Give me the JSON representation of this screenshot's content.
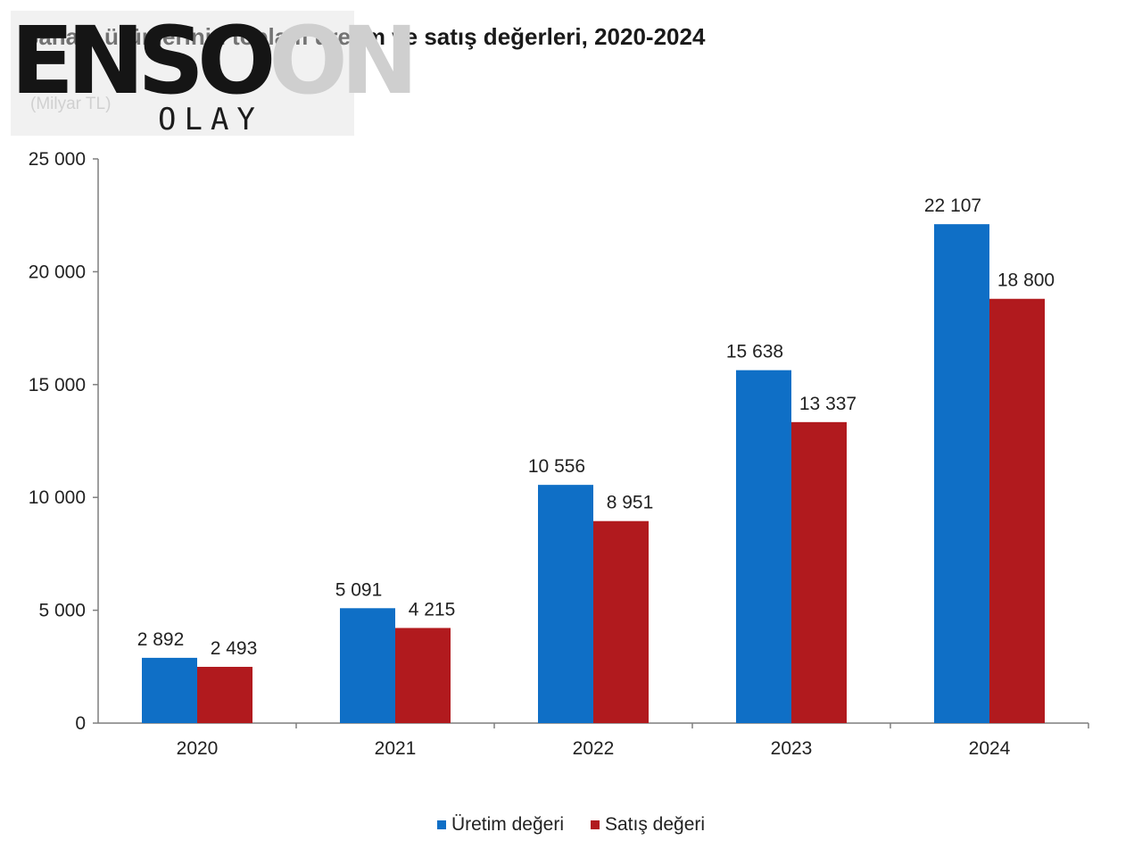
{
  "watermark": {
    "brand": "ENSON",
    "brand_dark": "ENSO",
    "brand_light": "ON",
    "sub": "OLAY"
  },
  "colors": {
    "uretim": "#0F6FC6",
    "satis": "#B11A1E",
    "axis": "#7f7f7f"
  },
  "chart_data": {
    "type": "bar",
    "title": "Sanayi ürünlerinin toplam üretim ve satış değerleri, 2020-2024",
    "unit_label": "(Milyar TL)",
    "categories": [
      "2020",
      "2021",
      "2022",
      "2023",
      "2024"
    ],
    "series": [
      {
        "name": "Üretim değeri",
        "values": [
          2892,
          5091,
          10556,
          15638,
          22107
        ],
        "labels": [
          "2 892",
          "5 091",
          "10 556",
          "15 638",
          "22 107"
        ],
        "color": "#0F6FC6"
      },
      {
        "name": "Satış değeri",
        "values": [
          2493,
          4215,
          8951,
          13337,
          18800
        ],
        "labels": [
          "2 493",
          "4 215",
          "8 951",
          "13 337",
          "18 800"
        ],
        "color": "#B11A1E"
      }
    ],
    "ylim": [
      0,
      25000
    ],
    "yticks": [
      0,
      5000,
      10000,
      15000,
      20000,
      25000
    ],
    "ytick_labels": [
      "0",
      "5 000",
      "10 000",
      "15 000",
      "20 000",
      "25 000"
    ],
    "grid": false,
    "legend_position": "bottom-center"
  }
}
